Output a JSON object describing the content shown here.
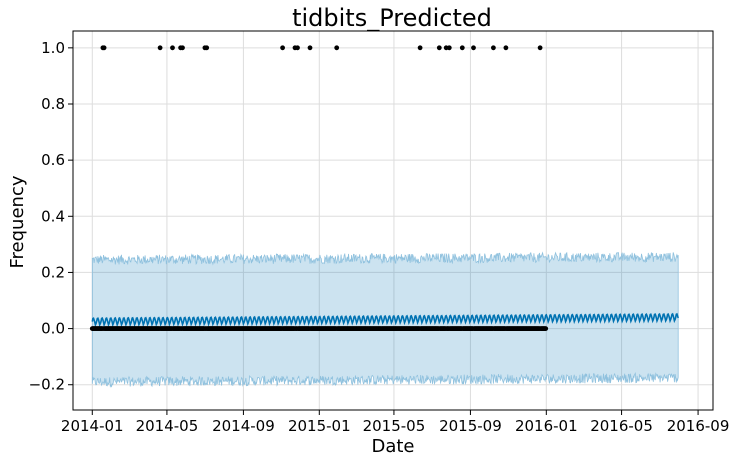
{
  "chart_data": {
    "type": "line",
    "title": "tidbits_Predicted",
    "xlabel": "Date",
    "ylabel": "Frequency",
    "x_axis": {
      "scale": "date",
      "range": [
        "2013-12-01",
        "2016-09-25"
      ],
      "ticks": [
        "2014-01-01",
        "2014-05-01",
        "2014-09-01",
        "2015-01-01",
        "2015-05-01",
        "2015-09-01",
        "2016-01-01",
        "2016-05-01",
        "2016-09-01"
      ],
      "tick_labels": [
        "2014-01",
        "2014-05",
        "2014-09",
        "2015-01",
        "2015-05",
        "2015-09",
        "2016-01",
        "2016-05",
        "2016-09"
      ]
    },
    "y_axis": {
      "range": [
        -0.29,
        1.06
      ],
      "ticks": [
        -0.2,
        0.0,
        0.2,
        0.4,
        0.6,
        0.8,
        1.0
      ],
      "tick_labels": [
        "−0.2",
        "0.0",
        "0.2",
        "0.4",
        "0.6",
        "0.8",
        "1.0"
      ]
    },
    "grid": true,
    "series": [
      {
        "kind": "forecast",
        "style": "line",
        "color": "#0072B2",
        "start": "2014-01-01",
        "end": "2016-07-31",
        "trend_start": 0.025,
        "trend_end": 0.04,
        "weekly_amplitude": 0.012
      },
      {
        "kind": "uncertainty_interval",
        "style": "band",
        "color": "#0072B2",
        "opacity": 0.2,
        "start": "2014-01-01",
        "end": "2016-07-31",
        "upper_start": 0.245,
        "upper_end": 0.255,
        "lower_start": -0.19,
        "lower_end": -0.175
      },
      {
        "kind": "observed",
        "style": "scatter",
        "color": "#000000",
        "baseline_value": 0.0,
        "baseline_start": "2014-01-01",
        "baseline_end": "2015-12-31",
        "points_at_1": [
          "2014-01-18",
          "2014-01-20",
          "2014-04-20",
          "2014-05-10",
          "2014-05-23",
          "2014-05-26",
          "2014-07-01",
          "2014-07-04",
          "2014-11-03",
          "2014-11-23",
          "2014-11-27",
          "2014-12-17",
          "2015-01-29",
          "2015-06-12",
          "2015-07-13",
          "2015-07-24",
          "2015-07-29",
          "2015-08-19",
          "2015-09-06",
          "2015-10-08",
          "2015-10-28",
          "2015-12-22"
        ]
      }
    ]
  }
}
